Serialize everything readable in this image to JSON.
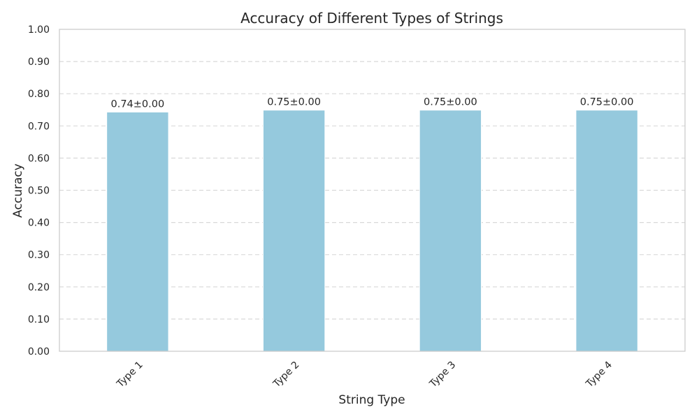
{
  "chart_data": {
    "type": "bar",
    "title": "Accuracy of Different Types of Strings",
    "xlabel": "String Type",
    "ylabel": "Accuracy",
    "categories": [
      "Type 1",
      "Type 2",
      "Type 3",
      "Type 4"
    ],
    "values": [
      0.743,
      0.749,
      0.749,
      0.749
    ],
    "data_labels": [
      "0.74±0.00",
      "0.75±0.00",
      "0.75±0.00",
      "0.75±0.00"
    ],
    "ylim": [
      0,
      1
    ],
    "yticks": [
      "0.00",
      "0.10",
      "0.20",
      "0.30",
      "0.40",
      "0.50",
      "0.60",
      "0.70",
      "0.80",
      "0.90",
      "1.00"
    ],
    "grid": "y-dashed",
    "bar_color": "#95c9dd",
    "grid_color": "#d9d9d9",
    "axes_edge_color": "#cccccc"
  }
}
